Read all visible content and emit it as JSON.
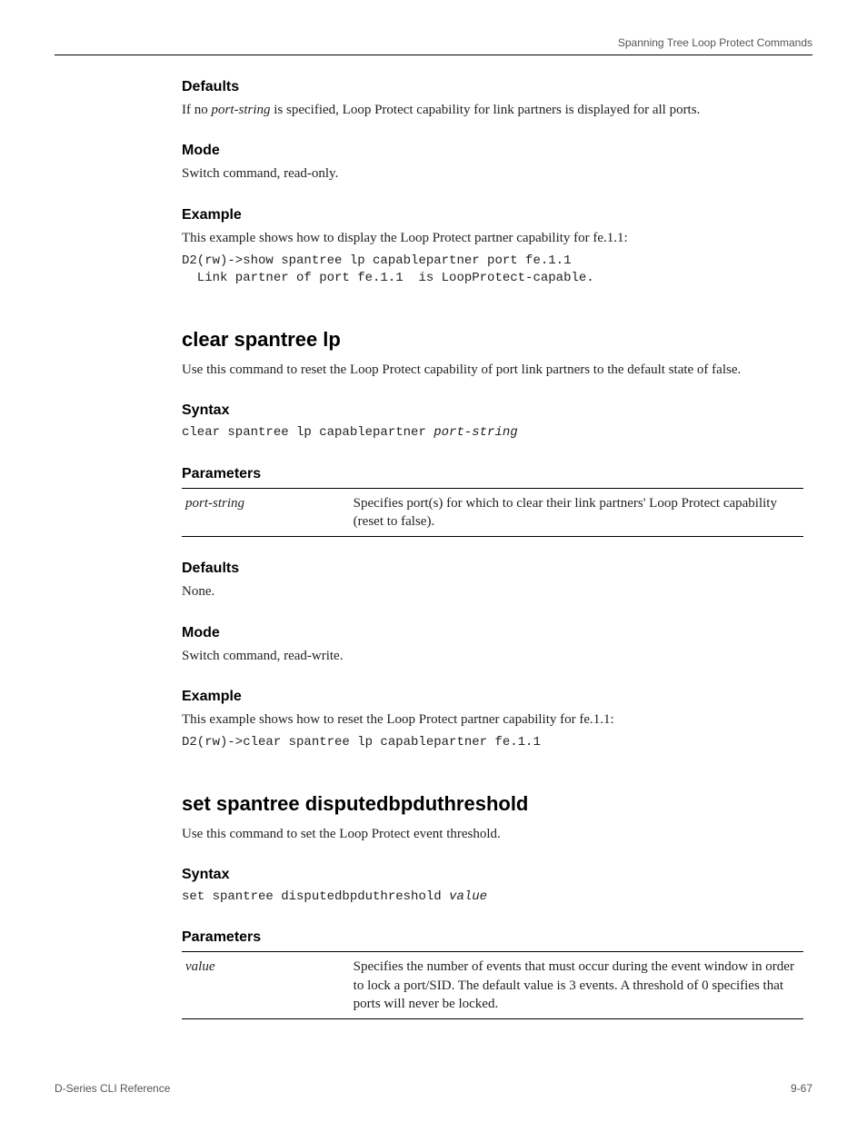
{
  "header": {
    "running_head": "Spanning Tree Loop Protect Commands"
  },
  "sec_defaults1": {
    "heading": "Defaults",
    "body_prefix": "If no ",
    "body_emph": "port-string",
    "body_suffix": " is specified, Loop Protect capability for link partners is displayed for all ports."
  },
  "sec_mode1": {
    "heading": "Mode",
    "body": "Switch command, read-only."
  },
  "sec_example1": {
    "heading": "Example",
    "body": "This example shows how to display the Loop Protect partner capability for fe.1.1:",
    "code": "D2(rw)->show spantree lp capablepartner port fe.1.1\n  Link partner of port fe.1.1  is LoopProtect-capable."
  },
  "cmd_clear": {
    "heading": "clear spantree lp",
    "body": "Use this command to reset the Loop Protect capability of port link partners to the default state of false."
  },
  "sec_syntax1": {
    "heading": "Syntax",
    "code_prefix": "clear spantree lp capablepartner ",
    "code_emph": "port-string"
  },
  "sec_params1": {
    "heading": "Parameters",
    "row": {
      "name": "port-string",
      "desc": "Specifies port(s) for which to clear their link partners' Loop Protect capability (reset to false)."
    }
  },
  "sec_defaults2": {
    "heading": "Defaults",
    "body": "None."
  },
  "sec_mode2": {
    "heading": "Mode",
    "body": "Switch command, read-write."
  },
  "sec_example2": {
    "heading": "Example",
    "body": "This example shows how to reset the Loop Protect partner capability for fe.1.1:",
    "code": "D2(rw)->clear spantree lp capablepartner fe.1.1"
  },
  "cmd_set": {
    "heading": "set spantree disputedbpduthreshold",
    "body": "Use this command to set the Loop Protect event threshold."
  },
  "sec_syntax2": {
    "heading": "Syntax",
    "code_prefix": "set spantree disputedbpduthreshold ",
    "code_emph": "value"
  },
  "sec_params2": {
    "heading": "Parameters",
    "row": {
      "name": "value",
      "desc": "Specifies the number of events that must occur during the event window in order to lock a port/SID. The default value is 3 events. A threshold of 0 specifies that ports will never be locked."
    }
  },
  "footer": {
    "left": "D-Series CLI Reference",
    "right": "9-67"
  }
}
